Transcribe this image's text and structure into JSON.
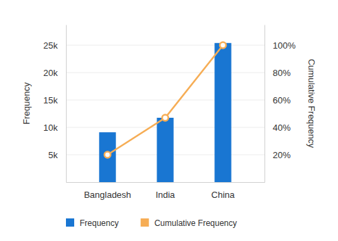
{
  "chart_data": {
    "type": "bar",
    "categories": [
      "Bangladesh",
      "India",
      "China"
    ],
    "series": [
      {
        "name": "Frequency",
        "type": "bar",
        "color": "#1976d2",
        "values": [
          9100,
          11750,
          25400
        ]
      },
      {
        "name": "Cumulative Frequency",
        "type": "line",
        "axis": "y2",
        "color": "#f6ad55",
        "marker": "circle",
        "values": [
          20,
          47,
          100
        ]
      }
    ],
    "y_label": "Frequency",
    "y2_label": "Cumulative Frequency",
    "ylim": [
      0,
      28750
    ],
    "yticks": [
      {
        "value": 5000,
        "label": "5k"
      },
      {
        "value": 10000,
        "label": "10k"
      },
      {
        "value": 15000,
        "label": "15k"
      },
      {
        "value": 20000,
        "label": "20k"
      },
      {
        "value": 25000,
        "label": "25k"
      }
    ],
    "y2lim": [
      0,
      115
    ],
    "y2ticks": [
      {
        "value": 20,
        "label": "20%"
      },
      {
        "value": 40,
        "label": "40%"
      },
      {
        "value": 60,
        "label": "60%"
      },
      {
        "value": 80,
        "label": "80%"
      },
      {
        "value": 100,
        "label": "100%"
      }
    ],
    "grid": true,
    "legend": "bottom"
  }
}
